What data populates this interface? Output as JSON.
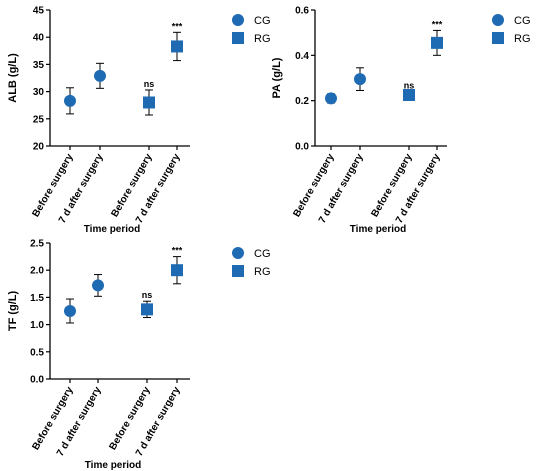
{
  "colors": {
    "marker": "#1f6bb3",
    "axis": "#000000"
  },
  "chart_data": [
    {
      "type": "scatter",
      "ylabel": "ALB (g/L)",
      "xlabel": "Time period",
      "categories": [
        "Before surgery",
        "7 d after surgery",
        "Before surgery",
        "7 d after surgery"
      ],
      "ylim": [
        20,
        45
      ],
      "yticks": [
        "20",
        "25",
        "30",
        "35",
        "40",
        "45"
      ],
      "points": [
        {
          "y": 28.3,
          "err": 2.4,
          "marker": "circle",
          "annotation": ""
        },
        {
          "y": 32.9,
          "err": 2.3,
          "marker": "circle",
          "annotation": ""
        },
        {
          "y": 28.0,
          "err": 2.3,
          "marker": "square",
          "annotation": "ns"
        },
        {
          "y": 38.3,
          "err": 2.6,
          "marker": "square",
          "annotation": "***"
        }
      ],
      "legend": [
        {
          "name": "CG",
          "marker": "circle"
        },
        {
          "name": "RG",
          "marker": "square"
        }
      ],
      "grid": false
    },
    {
      "type": "scatter",
      "ylabel": "PA (g/L)",
      "xlabel": "Time period",
      "categories": [
        "Before surgery",
        "7 d after surgery",
        "Before surgery",
        "7 d after surgery"
      ],
      "ylim": [
        0,
        0.6
      ],
      "yticks": [
        "0.0",
        "0.2",
        "0.4",
        "0.6"
      ],
      "points": [
        {
          "y": 0.21,
          "err": 0.02,
          "marker": "circle",
          "annotation": ""
        },
        {
          "y": 0.295,
          "err": 0.05,
          "marker": "circle",
          "annotation": ""
        },
        {
          "y": 0.225,
          "err": 0.015,
          "marker": "square",
          "annotation": "ns"
        },
        {
          "y": 0.455,
          "err": 0.055,
          "marker": "square",
          "annotation": "***"
        }
      ],
      "legend": [
        {
          "name": "CG",
          "marker": "circle"
        },
        {
          "name": "RG",
          "marker": "square"
        }
      ],
      "grid": false
    },
    {
      "type": "scatter",
      "ylabel": "TF (g/L)",
      "xlabel": "Time period",
      "categories": [
        "Before surgery",
        "7 d after surgery",
        "Before surgery",
        "7 d after surgery"
      ],
      "ylim": [
        0,
        2.5
      ],
      "yticks": [
        "0.0",
        "0.5",
        "1.0",
        "1.5",
        "2.0",
        "2.5"
      ],
      "points": [
        {
          "y": 1.25,
          "err": 0.22,
          "marker": "circle",
          "annotation": ""
        },
        {
          "y": 1.72,
          "err": 0.2,
          "marker": "circle",
          "annotation": ""
        },
        {
          "y": 1.28,
          "err": 0.15,
          "marker": "square",
          "annotation": "ns"
        },
        {
          "y": 2.0,
          "err": 0.25,
          "marker": "square",
          "annotation": "***"
        }
      ],
      "legend": [
        {
          "name": "CG",
          "marker": "circle"
        },
        {
          "name": "RG",
          "marker": "square"
        }
      ],
      "grid": false
    }
  ]
}
